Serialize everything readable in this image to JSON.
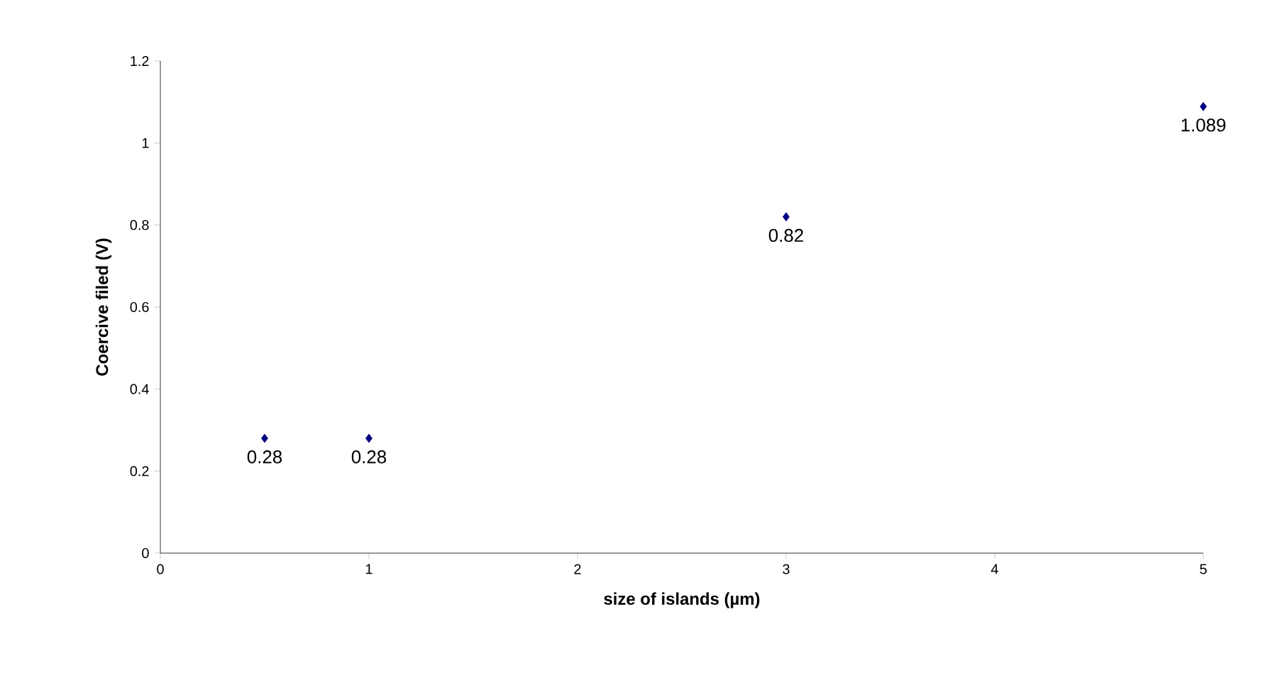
{
  "chart_data": {
    "type": "scatter",
    "xlabel": "size of islands (µm)",
    "ylabel": "Coercive filed (V)",
    "x": [
      0.5,
      1,
      3,
      5
    ],
    "series": [
      {
        "color": "#000080",
        "values": [
          0.28,
          0.28,
          0.82,
          1.089
        ]
      }
    ],
    "xlim": [
      0,
      5
    ],
    "xticks": [
      0,
      1,
      2,
      3,
      4,
      5
    ],
    "ylim": [
      0,
      1.2
    ],
    "yticks": [
      0,
      0.2,
      0.4,
      0.6,
      0.8,
      1,
      1.2
    ],
    "marker": "diamond",
    "data_labels": true,
    "grid": false
  }
}
